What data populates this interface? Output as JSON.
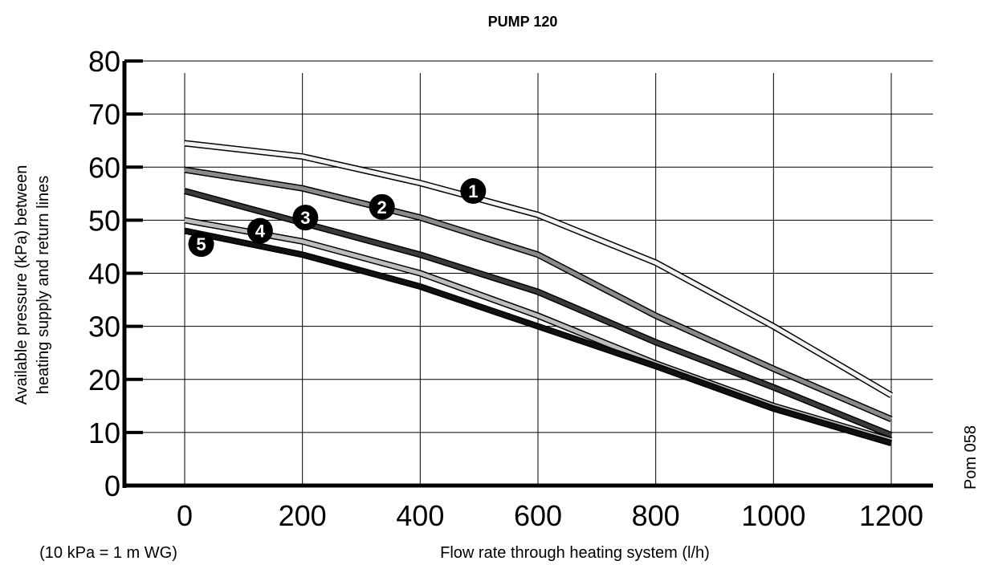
{
  "chart_data": {
    "type": "line",
    "title": "PUMP 120",
    "xlabel": "Flow rate through heating system (l/h)",
    "ylabel_lines": [
      "Available pressure (kPa) between",
      "heating supply and return lines"
    ],
    "note": "(10 kPa = 1 m WG)",
    "side_label": "Pom 058",
    "x_ticks": [
      "0",
      "200",
      "400",
      "600",
      "800",
      "1000",
      "1200"
    ],
    "y_ticks": [
      "0",
      "10",
      "20",
      "30",
      "40",
      "50",
      "60",
      "70",
      "80"
    ],
    "xlim": [
      0,
      1200
    ],
    "ylim": [
      0,
      80
    ],
    "grid": true,
    "x": [
      0,
      200,
      400,
      600,
      800,
      1000,
      1200
    ],
    "series": [
      {
        "marker": "1",
        "values": [
          64.5,
          62,
          57,
          51,
          42,
          30,
          17
        ],
        "fill": "#f2f2f2"
      },
      {
        "marker": "2",
        "values": [
          59.5,
          56,
          50.5,
          43.5,
          32,
          22,
          12.5
        ],
        "fill": "#8a8a8a"
      },
      {
        "marker": "3",
        "values": [
          55.5,
          49.5,
          43.5,
          36.5,
          27,
          18.5,
          9.5
        ],
        "fill": "#3a3a3a"
      },
      {
        "marker": "4",
        "values": [
          50,
          46,
          40,
          32,
          23,
          15,
          8.5
        ],
        "fill": "#bdbdbd"
      },
      {
        "marker": "5",
        "values": [
          48,
          43.5,
          37.5,
          30,
          22.5,
          14.5,
          8
        ],
        "fill": "#111111"
      }
    ],
    "markers": [
      {
        "label": "1",
        "x": 490,
        "y": 55.5
      },
      {
        "label": "2",
        "x": 335,
        "y": 52.5
      },
      {
        "label": "3",
        "x": 205,
        "y": 50.5
      },
      {
        "label": "4",
        "x": 128,
        "y": 48
      },
      {
        "label": "5",
        "x": 28,
        "y": 45.5
      }
    ]
  }
}
